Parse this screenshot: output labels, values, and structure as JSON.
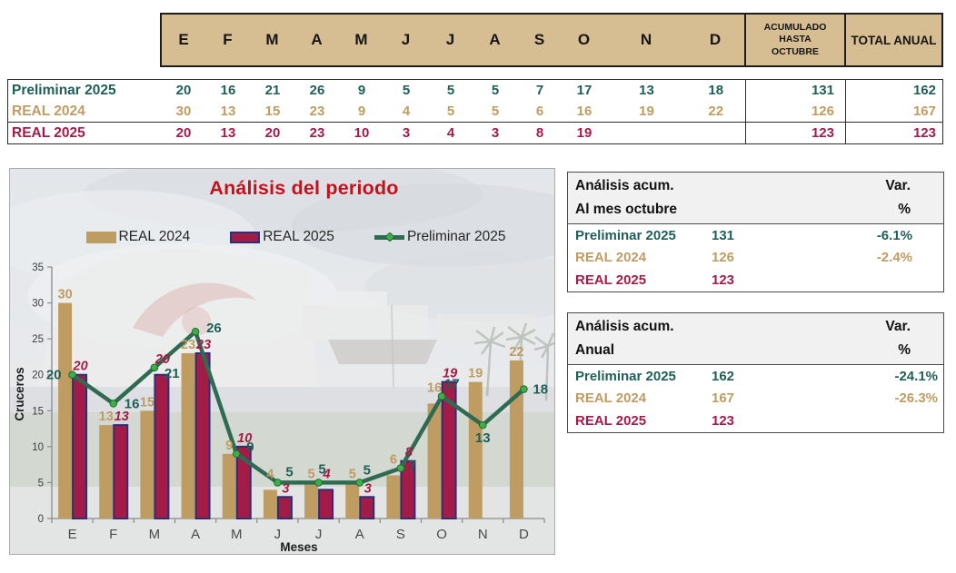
{
  "colors": {
    "tan": "#BE9C62",
    "maroon": "#A21C47",
    "maroon_border": "#2B2F76",
    "teal": "#1F5F57",
    "line": "#2E6B52",
    "marker": "#3EAE49",
    "red": "#C2131C",
    "header_bg": "#D6BD92"
  },
  "top_table": {
    "months": [
      "E",
      "F",
      "M",
      "A",
      "M",
      "J",
      "J",
      "A",
      "S",
      "O",
      "N",
      "D"
    ],
    "acum_header_lines": [
      "ACUMULADO",
      "HASTA",
      "OCTUBRE"
    ],
    "total_header": "TOTAL ANUAL",
    "rows": [
      {
        "label": "Preliminar 2025",
        "series": "teal",
        "values": [
          "20",
          "16",
          "21",
          "26",
          "9",
          "5",
          "5",
          "5",
          "7",
          "17",
          "13",
          "18"
        ],
        "acum": "131",
        "total": "162"
      },
      {
        "label": "REAL 2024",
        "series": "tan",
        "values": [
          "30",
          "13",
          "15",
          "23",
          "9",
          "4",
          "5",
          "5",
          "6",
          "16",
          "19",
          "22"
        ],
        "acum": "126",
        "total": "167"
      },
      {
        "label": "REAL 2025",
        "series": "maroon",
        "values": [
          "20",
          "13",
          "20",
          "23",
          "10",
          "3",
          "4",
          "3",
          "8",
          "19",
          "",
          ""
        ],
        "acum": "123",
        "total": "123"
      }
    ]
  },
  "chart_data": {
    "type": "combo-bar-line",
    "title": "Análisis del periodo",
    "categories": [
      "E",
      "F",
      "M",
      "A",
      "M",
      "J",
      "J",
      "A",
      "S",
      "O",
      "N",
      "D"
    ],
    "series": [
      {
        "name": "REAL 2024",
        "type": "bar",
        "color_key": "tan",
        "values": [
          30,
          13,
          15,
          23,
          9,
          4,
          5,
          5,
          6,
          16,
          19,
          22
        ]
      },
      {
        "name": "REAL 2025",
        "type": "bar",
        "color_key": "maroon",
        "values": [
          20,
          13,
          20,
          23,
          10,
          3,
          4,
          3,
          8,
          19,
          null,
          null
        ]
      },
      {
        "name": "Preliminar 2025",
        "type": "line",
        "color_key": "line",
        "values": [
          20,
          16,
          21,
          26,
          9,
          5,
          5,
          5,
          7,
          17,
          13,
          18
        ]
      }
    ],
    "xlabel": "Meses",
    "ylabel": "Cruceros",
    "ylim": [
      0,
      35
    ],
    "ytick_step": 5,
    "grid": false,
    "legend_position": "top"
  },
  "acum_tables": [
    {
      "title_lines": [
        "Análisis acum.",
        "Al mes octubre"
      ],
      "var_lines": [
        "Var.",
        "%"
      ],
      "rows": [
        {
          "label": "Preliminar 2025",
          "series": "teal",
          "value": "131",
          "var": "-6.1%"
        },
        {
          "label": "REAL 2024",
          "series": "tan",
          "value": "126",
          "var": "-2.4%"
        },
        {
          "label": "REAL 2025",
          "series": "maroon",
          "value": "123",
          "var": ""
        }
      ]
    },
    {
      "title_lines": [
        "Análisis acum.",
        "Anual"
      ],
      "var_lines": [
        "Var.",
        "%"
      ],
      "rows": [
        {
          "label": "Preliminar 2025",
          "series": "teal",
          "value": "162",
          "var": "-24.1%"
        },
        {
          "label": "REAL 2024",
          "series": "tan",
          "value": "167",
          "var": "-26.3%"
        },
        {
          "label": "REAL 2025",
          "series": "maroon",
          "value": "123",
          "var": ""
        }
      ]
    }
  ]
}
